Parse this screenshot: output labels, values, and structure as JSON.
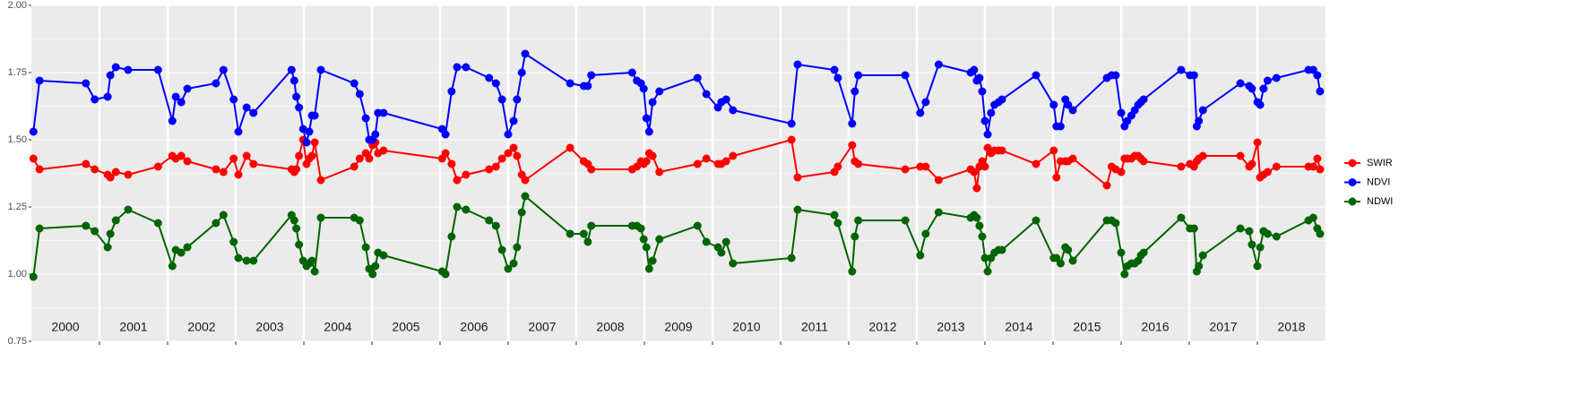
{
  "chart_data": {
    "type": "line",
    "x": [
      2000.03,
      2000.12,
      2000.8,
      2000.93,
      2001.12,
      2001.16,
      2001.24,
      2001.42,
      2001.86,
      2002.07,
      2002.12,
      2002.2,
      2002.29,
      2002.71,
      2002.82,
      2002.97,
      2003.04,
      2003.16,
      2003.26,
      2003.82,
      2003.86,
      2003.89,
      2003.93,
      2003.99,
      2004.04,
      2004.08,
      2004.12,
      2004.16,
      2004.25,
      2004.74,
      2004.82,
      2004.91,
      2004.96,
      2005.01,
      2005.05,
      2005.09,
      2005.17,
      2006.03,
      2006.08,
      2006.17,
      2006.25,
      2006.38,
      2006.72,
      2006.82,
      2006.91,
      2007.0,
      2007.08,
      2007.13,
      2007.2,
      2007.25,
      2007.91,
      2008.11,
      2008.17,
      2008.22,
      2008.82,
      2008.89,
      2008.95,
      2008.99,
      2009.03,
      2009.07,
      2009.12,
      2009.22,
      2009.78,
      2009.91,
      2010.08,
      2010.13,
      2010.2,
      2010.3,
      2011.16,
      2011.25,
      2011.79,
      2011.84,
      2012.05,
      2012.09,
      2012.14,
      2012.83,
      2013.05,
      2013.13,
      2013.32,
      2013.79,
      2013.84,
      2013.88,
      2013.92,
      2013.96,
      2014.0,
      2014.04,
      2014.09,
      2014.14,
      2014.2,
      2014.25,
      2014.75,
      2015.01,
      2015.05,
      2015.11,
      2015.18,
      2015.22,
      2015.29,
      2015.79,
      2015.86,
      2015.92,
      2016.0,
      2016.05,
      2016.09,
      2016.15,
      2016.2,
      2016.25,
      2016.29,
      2016.33,
      2016.88,
      2017.01,
      2017.07,
      2017.11,
      2017.14,
      2017.2,
      2017.75,
      2017.88,
      2017.92,
      2018.0,
      2018.04,
      2018.09,
      2018.15,
      2018.28,
      2018.75,
      2018.82,
      2018.88,
      2018.92
    ],
    "series": [
      {
        "name": "SWIR",
        "color": "#ff0000",
        "values": [
          1.43,
          1.39,
          1.41,
          1.39,
          1.37,
          1.36,
          1.38,
          1.37,
          1.4,
          1.44,
          1.43,
          1.44,
          1.42,
          1.39,
          1.38,
          1.43,
          1.37,
          1.44,
          1.41,
          1.39,
          1.38,
          1.39,
          1.44,
          1.5,
          1.41,
          1.43,
          1.44,
          1.49,
          1.35,
          1.4,
          1.43,
          1.45,
          1.43,
          1.48,
          1.49,
          1.45,
          1.46,
          1.43,
          1.45,
          1.41,
          1.35,
          1.37,
          1.39,
          1.4,
          1.43,
          1.45,
          1.47,
          1.44,
          1.37,
          1.35,
          1.47,
          1.42,
          1.41,
          1.39,
          1.39,
          1.4,
          1.42,
          1.41,
          1.42,
          1.45,
          1.44,
          1.38,
          1.41,
          1.43,
          1.41,
          1.41,
          1.42,
          1.44,
          1.5,
          1.36,
          1.38,
          1.4,
          1.48,
          1.42,
          1.41,
          1.39,
          1.4,
          1.4,
          1.35,
          1.39,
          1.38,
          1.32,
          1.4,
          1.42,
          1.4,
          1.47,
          1.45,
          1.46,
          1.46,
          1.46,
          1.41,
          1.46,
          1.36,
          1.42,
          1.42,
          1.42,
          1.43,
          1.33,
          1.4,
          1.39,
          1.38,
          1.43,
          1.43,
          1.43,
          1.44,
          1.44,
          1.43,
          1.42,
          1.4,
          1.41,
          1.4,
          1.42,
          1.43,
          1.44,
          1.44,
          1.4,
          1.41,
          1.49,
          1.36,
          1.37,
          1.38,
          1.4,
          1.4,
          1.4,
          1.43,
          1.39
        ]
      },
      {
        "name": "NDVI",
        "color": "#0000ff",
        "values": [
          1.53,
          1.72,
          1.71,
          1.65,
          1.66,
          1.74,
          1.77,
          1.76,
          1.76,
          1.57,
          1.66,
          1.64,
          1.69,
          1.71,
          1.76,
          1.65,
          1.53,
          1.62,
          1.6,
          1.76,
          1.72,
          1.66,
          1.62,
          1.54,
          1.49,
          1.53,
          1.59,
          1.59,
          1.76,
          1.71,
          1.67,
          1.58,
          1.5,
          1.5,
          1.52,
          1.6,
          1.6,
          1.54,
          1.52,
          1.68,
          1.77,
          1.77,
          1.73,
          1.71,
          1.65,
          1.52,
          1.57,
          1.65,
          1.75,
          1.82,
          1.71,
          1.7,
          1.7,
          1.74,
          1.75,
          1.72,
          1.71,
          1.69,
          1.58,
          1.53,
          1.64,
          1.68,
          1.73,
          1.67,
          1.62,
          1.64,
          1.65,
          1.61,
          1.56,
          1.78,
          1.76,
          1.73,
          1.56,
          1.68,
          1.74,
          1.74,
          1.6,
          1.64,
          1.78,
          1.75,
          1.76,
          1.72,
          1.73,
          1.68,
          1.57,
          1.52,
          1.6,
          1.63,
          1.64,
          1.65,
          1.74,
          1.63,
          1.55,
          1.55,
          1.65,
          1.63,
          1.61,
          1.73,
          1.74,
          1.74,
          1.6,
          1.55,
          1.57,
          1.59,
          1.61,
          1.63,
          1.64,
          1.65,
          1.76,
          1.74,
          1.74,
          1.55,
          1.57,
          1.61,
          1.71,
          1.7,
          1.69,
          1.64,
          1.63,
          1.69,
          1.72,
          1.73,
          1.76,
          1.76,
          1.74,
          1.68
        ]
      },
      {
        "name": "NDWI",
        "color": "#006400",
        "values": [
          0.99,
          1.17,
          1.18,
          1.16,
          1.1,
          1.15,
          1.2,
          1.24,
          1.19,
          1.03,
          1.09,
          1.08,
          1.1,
          1.19,
          1.22,
          1.12,
          1.06,
          1.05,
          1.05,
          1.22,
          1.2,
          1.17,
          1.11,
          1.05,
          1.03,
          1.04,
          1.05,
          1.01,
          1.21,
          1.21,
          1.2,
          1.1,
          1.02,
          1.0,
          1.03,
          1.08,
          1.07,
          1.01,
          1.0,
          1.14,
          1.25,
          1.24,
          1.2,
          1.18,
          1.09,
          1.02,
          1.04,
          1.1,
          1.23,
          1.29,
          1.15,
          1.15,
          1.12,
          1.18,
          1.18,
          1.18,
          1.17,
          1.13,
          1.1,
          1.02,
          1.05,
          1.13,
          1.18,
          1.12,
          1.1,
          1.08,
          1.12,
          1.04,
          1.06,
          1.24,
          1.22,
          1.19,
          1.01,
          1.14,
          1.2,
          1.2,
          1.07,
          1.15,
          1.23,
          1.21,
          1.22,
          1.21,
          1.18,
          1.14,
          1.06,
          1.01,
          1.06,
          1.08,
          1.09,
          1.09,
          1.2,
          1.06,
          1.06,
          1.04,
          1.1,
          1.09,
          1.05,
          1.2,
          1.2,
          1.19,
          1.08,
          1.0,
          1.03,
          1.04,
          1.04,
          1.05,
          1.07,
          1.08,
          1.21,
          1.17,
          1.17,
          1.01,
          1.03,
          1.07,
          1.17,
          1.16,
          1.11,
          1.03,
          1.1,
          1.16,
          1.15,
          1.14,
          1.2,
          1.21,
          1.17,
          1.15
        ]
      }
    ],
    "xlim": [
      2000,
      2019
    ],
    "xticks": [
      {
        "value": 2000.5,
        "label": "2000"
      },
      {
        "value": 2001.5,
        "label": "2001"
      },
      {
        "value": 2002.5,
        "label": "2002"
      },
      {
        "value": 2003.5,
        "label": "2003"
      },
      {
        "value": 2004.5,
        "label": "2004"
      },
      {
        "value": 2005.5,
        "label": "2005"
      },
      {
        "value": 2006.5,
        "label": "2006"
      },
      {
        "value": 2007.5,
        "label": "2007"
      },
      {
        "value": 2008.5,
        "label": "2008"
      },
      {
        "value": 2009.5,
        "label": "2009"
      },
      {
        "value": 2010.5,
        "label": "2010"
      },
      {
        "value": 2011.5,
        "label": "2011"
      },
      {
        "value": 2012.5,
        "label": "2012"
      },
      {
        "value": 2013.5,
        "label": "2013"
      },
      {
        "value": 2014.5,
        "label": "2014"
      },
      {
        "value": 2015.5,
        "label": "2015"
      },
      {
        "value": 2016.5,
        "label": "2016"
      },
      {
        "value": 2017.5,
        "label": "2017"
      },
      {
        "value": 2018.5,
        "label": "2018"
      }
    ],
    "ylim": [
      0.75,
      2.0
    ],
    "yticks": [
      0.75,
      {
        "value": 1.0,
        "label": "1.00"
      },
      1.25,
      {
        "value": 1.5,
        "label": "1.50"
      },
      1.75,
      {
        "value": 2.0,
        "label": "2.00"
      }
    ],
    "grid": true,
    "legend": "right"
  }
}
